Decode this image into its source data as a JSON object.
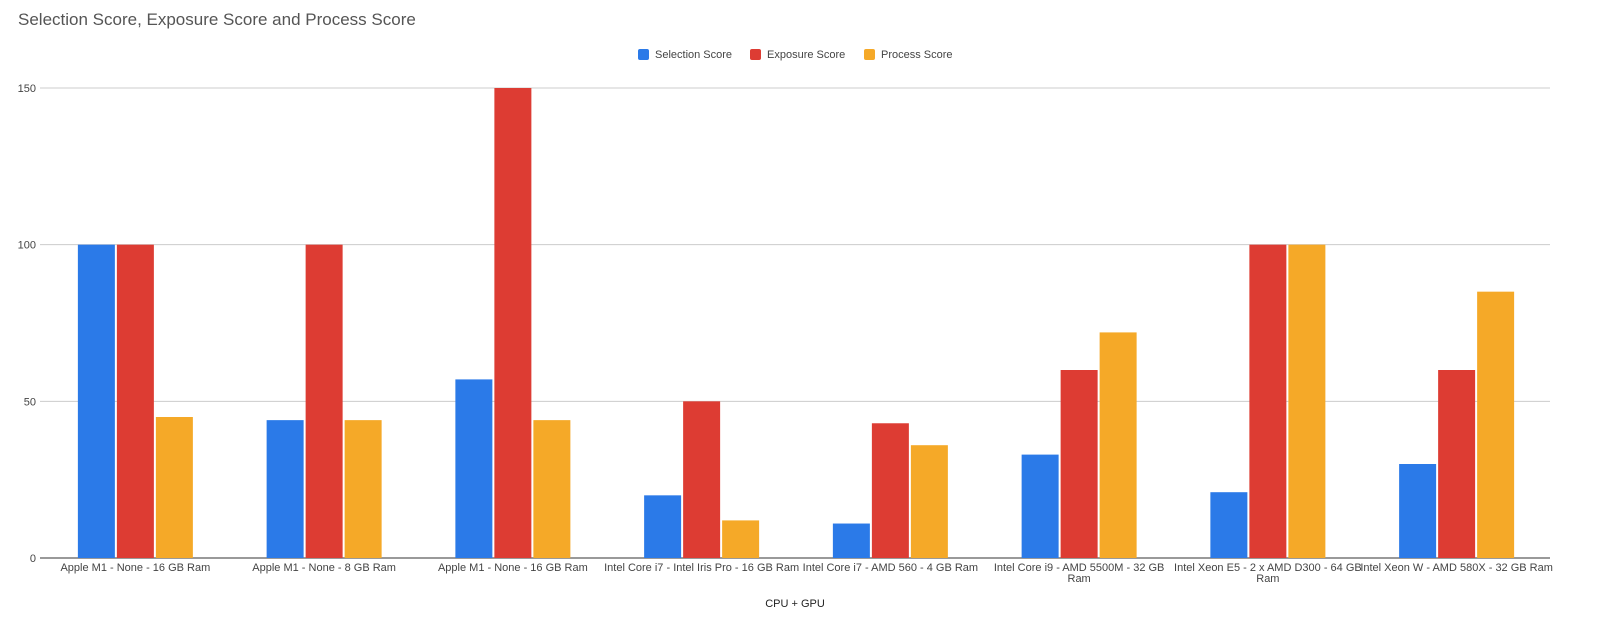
{
  "chart_data": {
    "type": "bar",
    "title": "Selection Score, Exposure Score and Process Score",
    "xlabel": "CPU + GPU",
    "ylabel": "",
    "ylim": [
      0,
      150
    ],
    "yticks": [
      "0",
      "50",
      "100",
      "150"
    ],
    "grid": true,
    "legend_position": "top",
    "categories": [
      [
        "Apple M1 - None - 16 GB Ram"
      ],
      [
        "Apple M1 - None - 8 GB Ram"
      ],
      [
        "Apple M1 - None - 16 GB Ram"
      ],
      [
        "Intel Core i7 - Intel Iris Pro - 16 GB Ram"
      ],
      [
        "Intel Core i7 - AMD 560 - 4 GB Ram"
      ],
      [
        "Intel Core i9 - AMD 5500M - 32 GB",
        "Ram"
      ],
      [
        "Intel Xeon E5 - 2 x AMD D300 - 64 GB",
        "Ram"
      ],
      [
        "Intel Xeon W - AMD 580X - 32 GB Ram"
      ]
    ],
    "series": [
      {
        "name": "Selection Score",
        "color": "#2b7ae8",
        "values": [
          100,
          44,
          57,
          20,
          11,
          33,
          21,
          30
        ]
      },
      {
        "name": "Exposure Score",
        "color": "#dd3c33",
        "values": [
          100,
          100,
          150,
          50,
          43,
          60,
          100,
          60
        ]
      },
      {
        "name": "Process Score",
        "color": "#f5a928",
        "values": [
          45,
          44,
          44,
          12,
          36,
          72,
          100,
          85
        ]
      }
    ]
  }
}
